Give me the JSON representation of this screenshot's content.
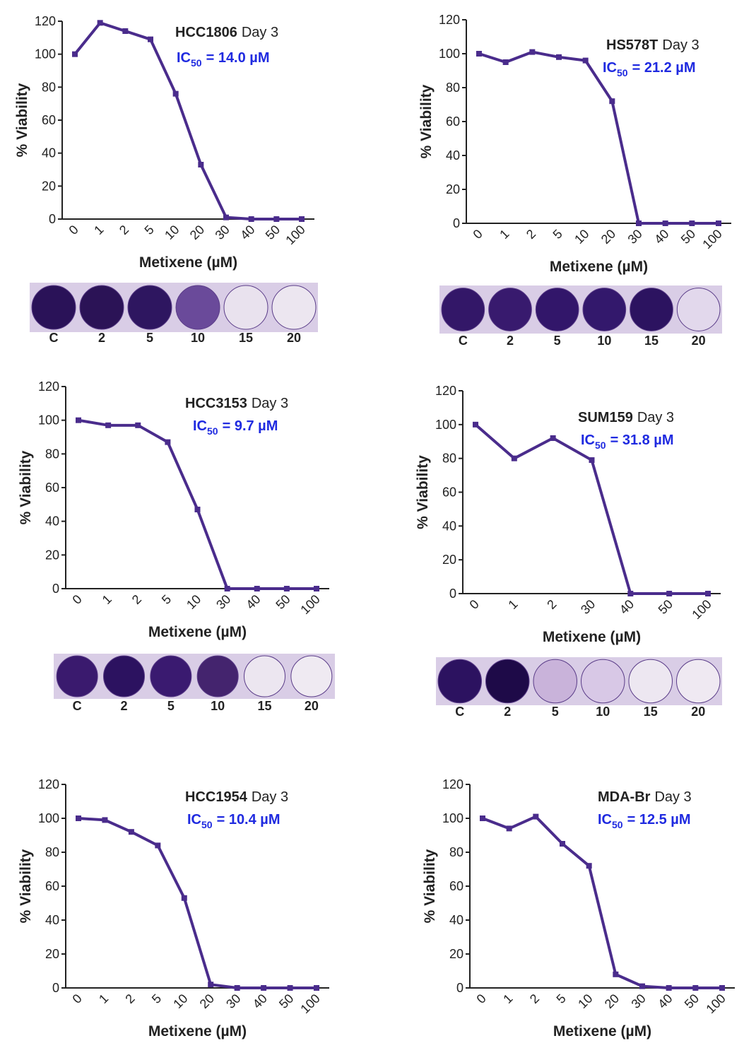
{
  "chart_data": [
    {
      "type": "line",
      "title": "HCC1806",
      "subtitle": "Day 3",
      "annotation": {
        "prefix": "IC",
        "subscript": "50",
        "text": "= 14.0 µM"
      },
      "xlabel": "Metixene (µM)",
      "ylabel": "% Viability",
      "categories": [
        "0",
        "1",
        "2",
        "5",
        "10",
        "20",
        "30",
        "40",
        "50",
        "100"
      ],
      "values": [
        100,
        119,
        114,
        109,
        76,
        33,
        1,
        0,
        0,
        0
      ],
      "color": "#4a2c8c",
      "ylim": [
        0,
        120
      ],
      "yticks": [
        0,
        20,
        40,
        60,
        80,
        100,
        120
      ],
      "well_labels": [
        "C",
        "2",
        "5",
        "10",
        "15",
        "20"
      ]
    },
    {
      "type": "line",
      "title": "HS578T",
      "subtitle": "Day 3",
      "annotation": {
        "prefix": "IC",
        "subscript": "50",
        "text": "= 21.2 µM"
      },
      "xlabel": "Metixene (µM)",
      "ylabel": "% Viability",
      "categories": [
        "0",
        "1",
        "2",
        "5",
        "10",
        "20",
        "30",
        "40",
        "50",
        "100"
      ],
      "values": [
        100,
        95,
        101,
        98,
        96,
        72,
        0,
        0,
        0,
        0
      ],
      "color": "#4a2c8c",
      "ylim": [
        0,
        120
      ],
      "yticks": [
        0,
        20,
        40,
        60,
        80,
        100,
        120
      ],
      "well_labels": [
        "C",
        "2",
        "5",
        "10",
        "15",
        "20"
      ]
    },
    {
      "type": "line",
      "title": "HCC3153",
      "subtitle": "Day 3",
      "annotation": {
        "prefix": "IC",
        "subscript": "50",
        "text": "= 9.7 µM"
      },
      "xlabel": "Metixene (µM)",
      "ylabel": "% Viability",
      "categories": [
        "0",
        "1",
        "2",
        "5",
        "10",
        "30",
        "40",
        "50",
        "100"
      ],
      "values": [
        100,
        97,
        97,
        87,
        47,
        0,
        0,
        0,
        0
      ],
      "color": "#4a2c8c",
      "ylim": [
        0,
        120
      ],
      "yticks": [
        0,
        20,
        40,
        60,
        80,
        100,
        120
      ],
      "well_labels": [
        "C",
        "2",
        "5",
        "10",
        "15",
        "20"
      ]
    },
    {
      "type": "line",
      "title": "SUM159",
      "subtitle": "Day 3",
      "annotation": {
        "prefix": "IC",
        "subscript": "50",
        "text": "= 31.8 µM"
      },
      "xlabel": "Metixene (µM)",
      "ylabel": "% Viability",
      "categories": [
        "0",
        "1",
        "2",
        "30",
        "40",
        "50",
        "100"
      ],
      "values": [
        100,
        80,
        92,
        79,
        0,
        0,
        0
      ],
      "color": "#4a2c8c",
      "ylim": [
        0,
        120
      ],
      "yticks": [
        0,
        20,
        40,
        60,
        80,
        100,
        120
      ],
      "well_labels": [
        "C",
        "2",
        "5",
        "10",
        "15",
        "20"
      ]
    },
    {
      "type": "line",
      "title": "HCC1954",
      "subtitle": "Day 3",
      "annotation": {
        "prefix": "IC",
        "subscript": "50",
        "text": "= 10.4 µM"
      },
      "xlabel": "Metixene (µM)",
      "ylabel": "% Viability",
      "categories": [
        "0",
        "1",
        "2",
        "5",
        "10",
        "20",
        "30",
        "40",
        "50",
        "100"
      ],
      "values": [
        100,
        99,
        92,
        84,
        53,
        2,
        0,
        0,
        0,
        0
      ],
      "color": "#4a2c8c",
      "ylim": [
        0,
        120
      ],
      "yticks": [
        0,
        20,
        40,
        60,
        80,
        100,
        120
      ]
    },
    {
      "type": "line",
      "title": "MDA-Br",
      "subtitle": "Day 3",
      "annotation": {
        "prefix": "IC",
        "subscript": "50",
        "text": "= 12.5 µM"
      },
      "xlabel": "Metixene (µM)",
      "ylabel": "% Viability",
      "categories": [
        "0",
        "1",
        "2",
        "5",
        "10",
        "20",
        "30",
        "40",
        "50",
        "100"
      ],
      "values": [
        100,
        94,
        101,
        85,
        72,
        8,
        1,
        0,
        0,
        0
      ],
      "color": "#4a2c8c",
      "ylim": [
        0,
        120
      ],
      "yticks": [
        0,
        20,
        40,
        60,
        80,
        100,
        120
      ]
    }
  ]
}
